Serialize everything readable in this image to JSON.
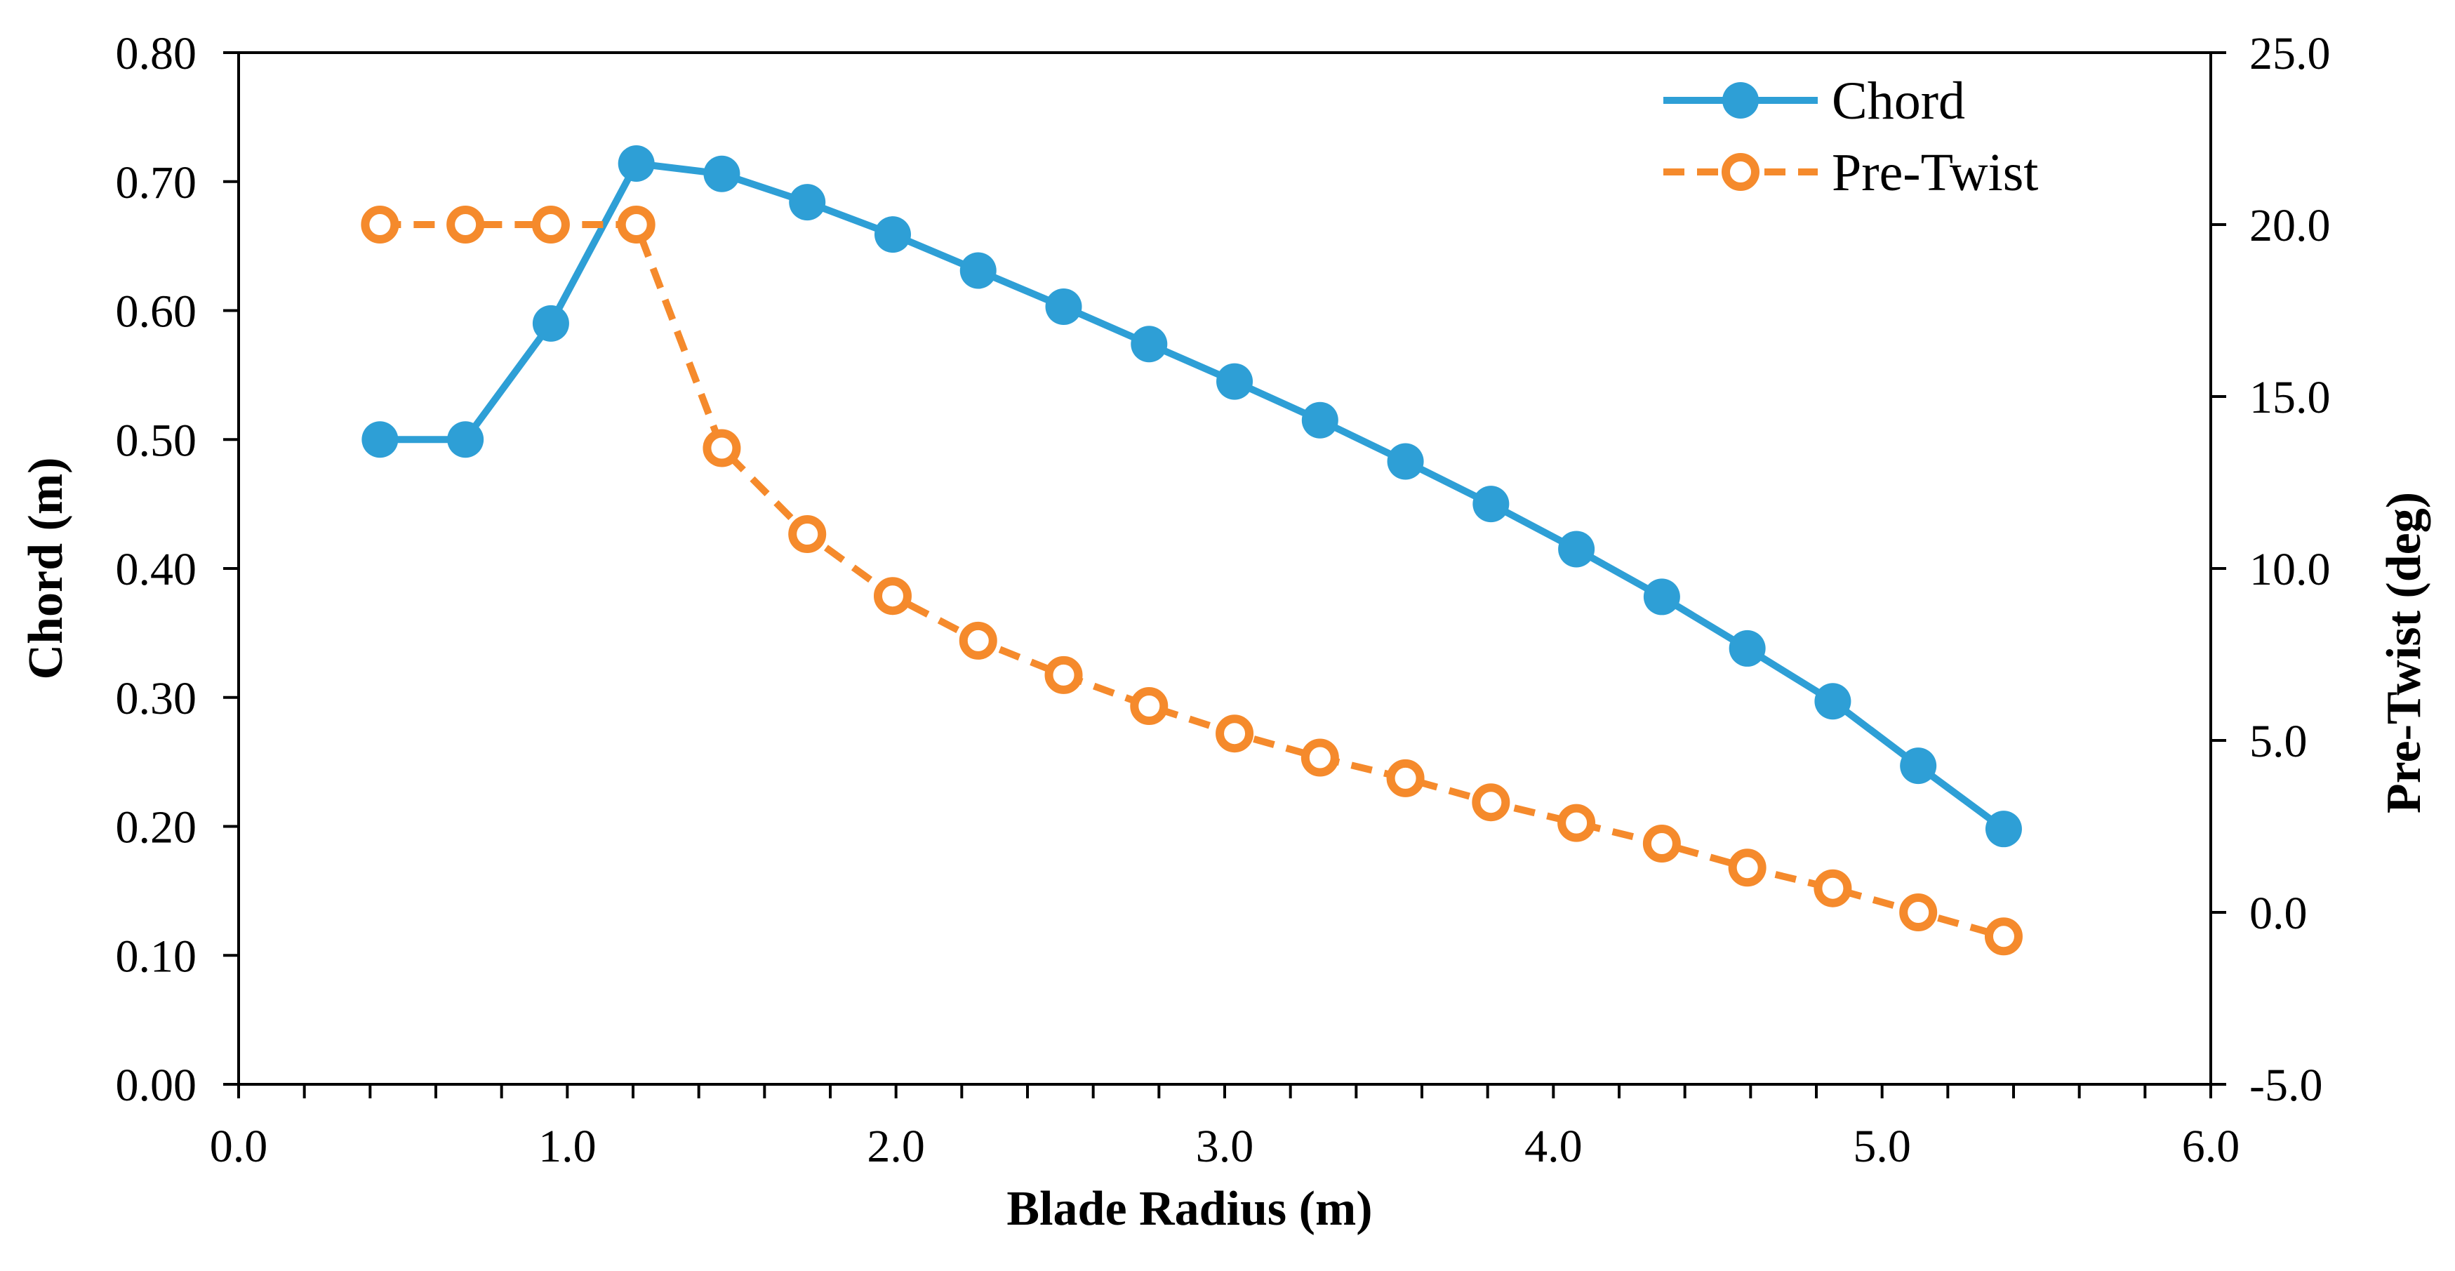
{
  "chart_data": {
    "type": "line",
    "title": "",
    "xlabel": "Blade Radius (m)",
    "ylabel": "Chord (m)",
    "y2label": "Pre-Twist (deg)",
    "xlim": [
      0.0,
      6.0
    ],
    "ylim": [
      0.0,
      0.8
    ],
    "y2lim": [
      -5.0,
      25.0
    ],
    "x_ticks": [
      "0.0",
      "1.0",
      "2.0",
      "3.0",
      "4.0",
      "5.0",
      "6.0"
    ],
    "y_ticks": [
      "0.00",
      "0.10",
      "0.20",
      "0.30",
      "0.40",
      "0.50",
      "0.60",
      "0.70",
      "0.80"
    ],
    "y2_ticks": [
      "-5.0",
      "0.0",
      "5.0",
      "10.0",
      "15.0",
      "20.0",
      "25.0"
    ],
    "grid": false,
    "legend_position": "top-right",
    "series": [
      {
        "name": "Chord",
        "axis": "left",
        "color": "#2E9FD6",
        "line_style": "solid",
        "marker": "filled-circle",
        "x": [
          0.43,
          0.69,
          0.95,
          1.21,
          1.47,
          1.73,
          1.99,
          2.25,
          2.51,
          2.77,
          3.03,
          3.29,
          3.55,
          3.81,
          4.07,
          4.33,
          4.59,
          4.85,
          5.11,
          5.37
        ],
        "values": [
          0.5,
          0.5,
          0.59,
          0.714,
          0.706,
          0.684,
          0.659,
          0.631,
          0.603,
          0.574,
          0.545,
          0.515,
          0.483,
          0.45,
          0.415,
          0.378,
          0.338,
          0.297,
          0.247,
          0.198
        ]
      },
      {
        "name": "Pre-Twist",
        "axis": "right",
        "color": "#F58A2C",
        "line_style": "dashed",
        "marker": "hollow-circle",
        "x": [
          0.43,
          0.69,
          0.95,
          1.21,
          1.47,
          1.73,
          1.99,
          2.25,
          2.51,
          2.77,
          3.03,
          3.29,
          3.55,
          3.81,
          4.07,
          4.33,
          4.59,
          4.85,
          5.11,
          5.37
        ],
        "values": [
          20.0,
          20.0,
          20.0,
          20.0,
          13.5,
          11.0,
          9.2,
          7.9,
          6.9,
          6.0,
          5.2,
          4.5,
          3.9,
          3.2,
          2.6,
          2.0,
          1.3,
          0.7,
          0.0,
          -0.7
        ]
      }
    ]
  }
}
